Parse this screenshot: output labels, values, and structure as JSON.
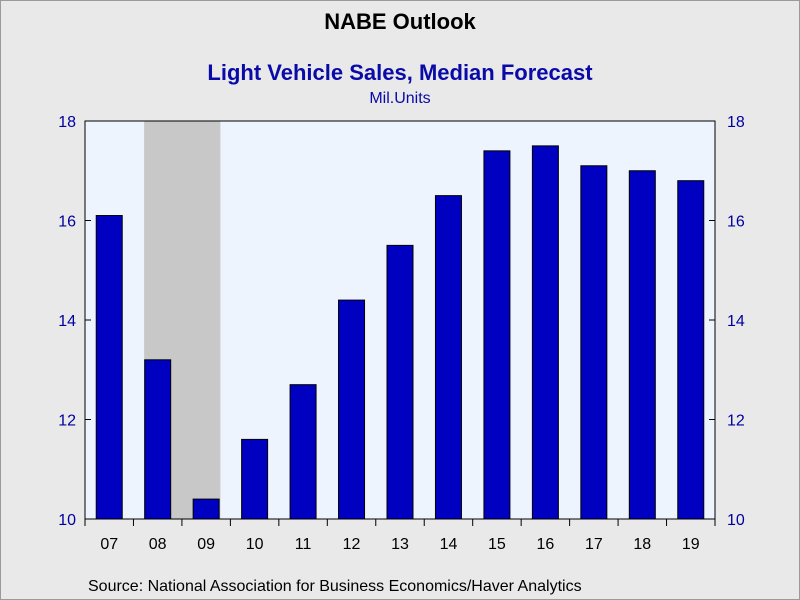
{
  "chart_data": {
    "type": "bar",
    "title": "NABE Outlook",
    "subtitle": "Light Vehicle Sales, Median Forecast",
    "units": "Mil.Units",
    "categories": [
      "07",
      "08",
      "09",
      "10",
      "11",
      "12",
      "13",
      "14",
      "15",
      "16",
      "17",
      "18",
      "19"
    ],
    "values": [
      16.1,
      13.2,
      10.4,
      11.6,
      12.7,
      14.4,
      15.5,
      16.5,
      17.4,
      17.5,
      17.1,
      17.0,
      16.8
    ],
    "ylim": [
      10,
      18
    ],
    "yticks": [
      10,
      12,
      14,
      16,
      18
    ],
    "recession_shading": [
      "08",
      "09"
    ],
    "grid": false,
    "source": "Source:  National Association for Business Economics/Haver Analytics",
    "colors": {
      "bar_fill": "#0000c0",
      "bar_edge": "#000000",
      "plot_bg": "#eef4fd",
      "recession": "#c8c8c8",
      "tick_label": "#0000a0",
      "subtitle": "#0a0aa8"
    }
  }
}
